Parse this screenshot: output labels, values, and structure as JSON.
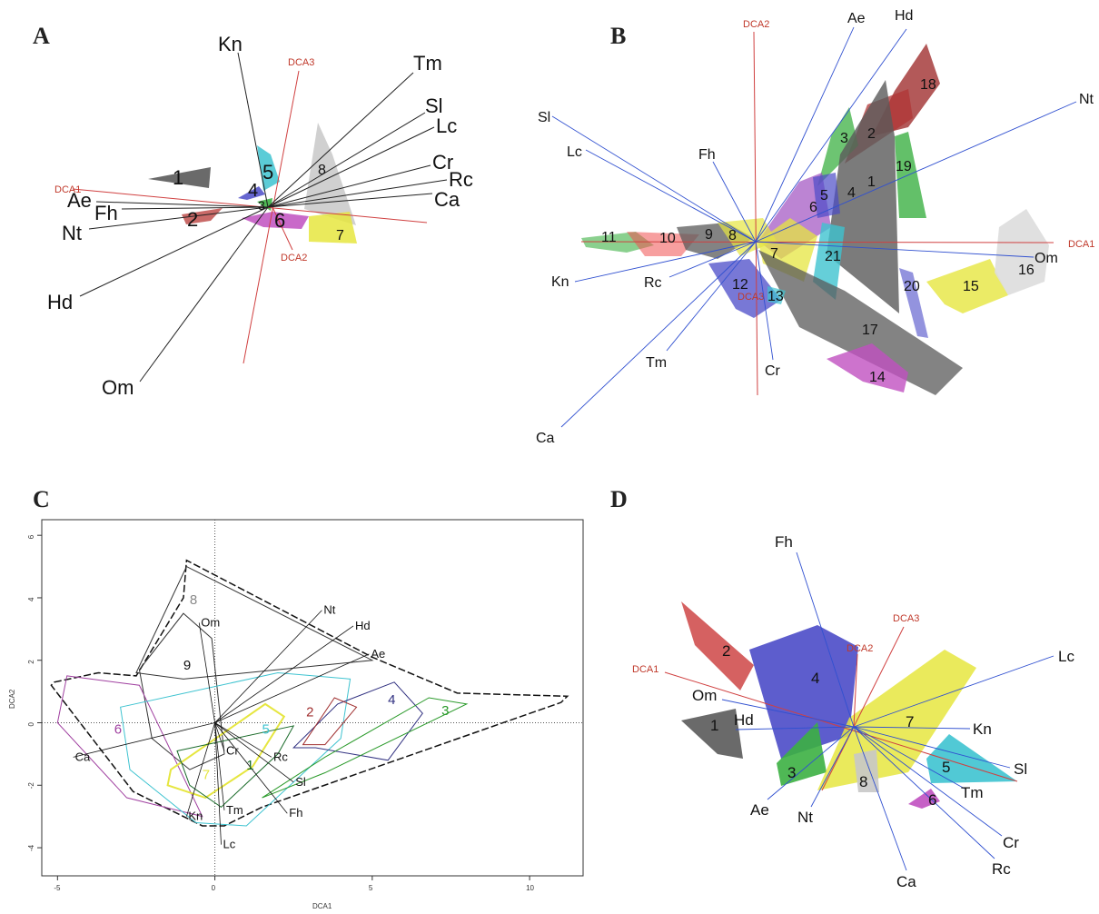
{
  "panels": {
    "A": "A",
    "B": "B",
    "C": "C",
    "D": "D"
  },
  "colors": {
    "dark_grey": "#5a5a5a",
    "red": "#c0504d",
    "green": "#3cb043",
    "blue": "#4b4bc8",
    "cyan": "#3ec3d0",
    "magenta": "#c050c0",
    "yellow": "#e6e640",
    "light_grey": "#c8c8c8",
    "darkred": "#a03030",
    "axis_red": "#d04040",
    "vector_blue": "#3050d0"
  },
  "chart_data": [
    {
      "panel": "A",
      "type": "scatter",
      "title": "",
      "axes": [
        "DCA1",
        "DCA2",
        "DCA3"
      ],
      "variables": [
        "Kn",
        "Tm",
        "Sl",
        "Lc",
        "Cr",
        "Rc",
        "Ca",
        "Ae",
        "Fh",
        "Nt",
        "Hd",
        "Om"
      ],
      "clusters": [
        "1",
        "2",
        "3",
        "4",
        "5",
        "6",
        "7",
        "8"
      ]
    },
    {
      "panel": "B",
      "type": "scatter",
      "title": "",
      "axes": [
        "DCA2",
        "DCA1",
        "DCA3"
      ],
      "variables": [
        "Ae",
        "Hd",
        "Nt",
        "Sl",
        "Lc",
        "Fh",
        "Om",
        "Kn",
        "Rc",
        "Tm",
        "Cr",
        "Ca"
      ],
      "clusters": [
        "1",
        "2",
        "3",
        "4",
        "5",
        "6",
        "7",
        "8",
        "9",
        "10",
        "11",
        "12",
        "13",
        "14",
        "15",
        "16",
        "17",
        "18",
        "19",
        "20",
        "21"
      ]
    },
    {
      "panel": "C",
      "type": "scatter",
      "title": "",
      "xlabel": "DCA1",
      "ylabel": "DCA2",
      "xlim": [
        -5.5,
        11.7
      ],
      "ylim": [
        -4.9,
        6.5
      ],
      "xticks": [
        "-5",
        "0",
        "5",
        "10"
      ],
      "yticks": [
        "-4",
        "-2",
        "0",
        "2",
        "4",
        "6"
      ],
      "vectors": [
        {
          "name": "Nt",
          "x": 3.4,
          "y": 3.6
        },
        {
          "name": "Hd",
          "x": 4.4,
          "y": 3.1
        },
        {
          "name": "Ae",
          "x": 4.9,
          "y": 2.2
        },
        {
          "name": "Om",
          "x": -0.5,
          "y": 3.2
        },
        {
          "name": "Ca",
          "x": -4.5,
          "y": -1.1
        },
        {
          "name": "Cr",
          "x": 0.3,
          "y": -0.9
        },
        {
          "name": "Rc",
          "x": 1.8,
          "y": -1.1
        },
        {
          "name": "Sl",
          "x": 2.5,
          "y": -1.9
        },
        {
          "name": "Fh",
          "x": 2.3,
          "y": -2.9
        },
        {
          "name": "Tm",
          "x": 0.3,
          "y": -2.8
        },
        {
          "name": "Kn",
          "x": -0.9,
          "y": -3.0
        },
        {
          "name": "Lc",
          "x": 0.2,
          "y": -3.9
        }
      ],
      "groups": [
        {
          "name": "1",
          "x": 1.0,
          "y": -1.5,
          "color": "#1a6b2a"
        },
        {
          "name": "2",
          "x": 2.9,
          "y": 0.2,
          "color": "#a03030"
        },
        {
          "name": "3",
          "x": 7.2,
          "y": 0.25,
          "color": "#2a9a2a"
        },
        {
          "name": "4",
          "x": 5.5,
          "y": 0.6,
          "color": "#303080"
        },
        {
          "name": "5",
          "x": 1.5,
          "y": -0.35,
          "color": "#3ec3d0"
        },
        {
          "name": "6",
          "x": -3.2,
          "y": -0.35,
          "color": "#a040a0"
        },
        {
          "name": "7",
          "x": -0.4,
          "y": -1.8,
          "color": "#e6e640"
        },
        {
          "name": "8",
          "x": -0.8,
          "y": 3.8,
          "color": "#888888"
        },
        {
          "name": "9",
          "x": -1.0,
          "y": 1.7,
          "color": "#111111"
        }
      ]
    },
    {
      "panel": "D",
      "type": "scatter",
      "title": "",
      "axes": [
        "DCA1",
        "DCA2",
        "DCA3"
      ],
      "variables": [
        "Fh",
        "Lc",
        "Om",
        "Hd",
        "Kn",
        "Sl",
        "Tm",
        "Cr",
        "Rc",
        "Ca",
        "Nt",
        "Ae"
      ],
      "clusters": [
        "1",
        "2",
        "3",
        "4",
        "5",
        "6",
        "7",
        "8"
      ]
    }
  ]
}
